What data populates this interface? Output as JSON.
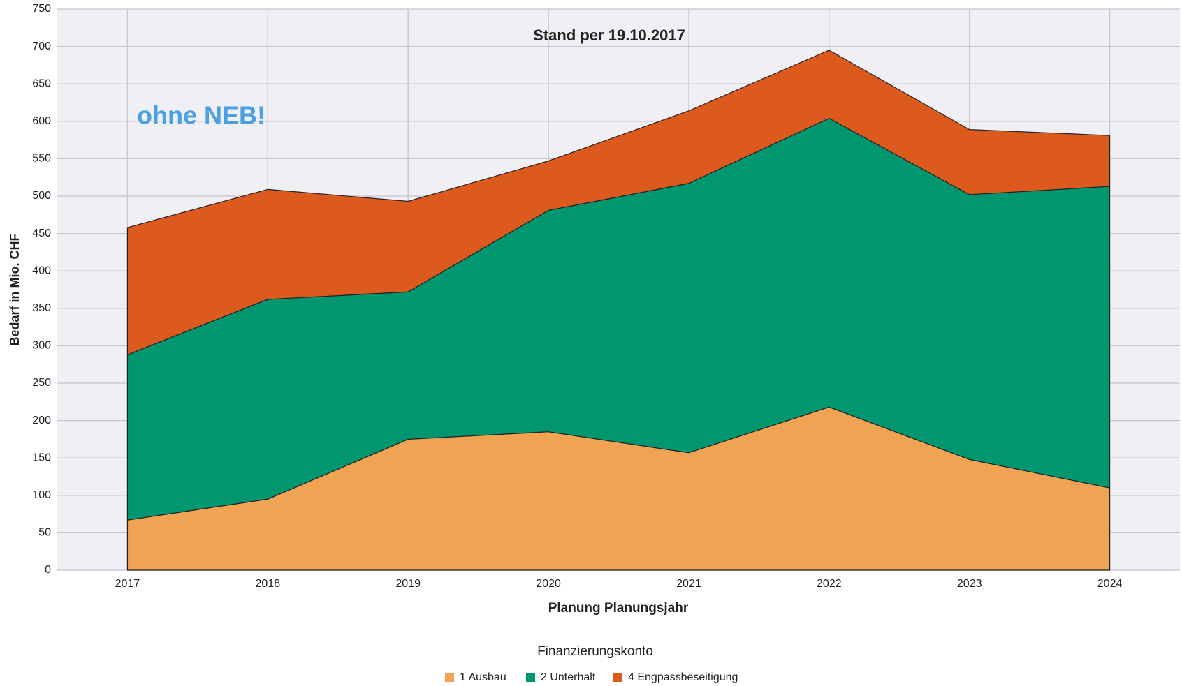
{
  "chart_data": {
    "type": "area",
    "stacked": true,
    "title": "Stand per 19.10.2017",
    "annotation": "ohne NEB!",
    "ylabel": "Bedarf in Mio. CHF",
    "xlabel": "Planung Planungsjahr",
    "legend_title": "Finanzierungskonto",
    "categories": [
      "2017",
      "2018",
      "2019",
      "2020",
      "2021",
      "2022",
      "2023",
      "2024"
    ],
    "series": [
      {
        "name": "1 Ausbau",
        "color": "#f0a352",
        "values": [
          67,
          95,
          175,
          185,
          157,
          218,
          148,
          110
        ]
      },
      {
        "name": "2 Unterhalt",
        "color": "#009670",
        "values": [
          221,
          267,
          197,
          296,
          360,
          386,
          354,
          403
        ]
      },
      {
        "name": "4 Engpassbeseitigung",
        "color": "#dd5a1f",
        "values": [
          170,
          147,
          121,
          66,
          97,
          91,
          87,
          68
        ]
      }
    ],
    "ylim": [
      0,
      750
    ],
    "yticks": [
      0,
      50,
      100,
      150,
      200,
      250,
      300,
      350,
      400,
      450,
      500,
      550,
      600,
      650,
      700,
      750
    ],
    "grid": true,
    "legend": "bottom"
  }
}
